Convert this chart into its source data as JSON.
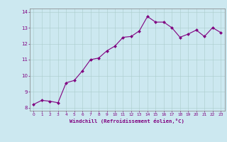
{
  "x_data": [
    0,
    1,
    2,
    3,
    4,
    5,
    6,
    7,
    8,
    9,
    10,
    11,
    12,
    13,
    14,
    15,
    16,
    17,
    18,
    19,
    20,
    21,
    22,
    23
  ],
  "y_data": [
    8.2,
    8.45,
    8.4,
    8.3,
    9.55,
    9.7,
    10.3,
    11.0,
    11.1,
    11.55,
    11.85,
    12.4,
    12.45,
    12.8,
    13.7,
    13.35,
    13.35,
    13.0,
    12.4,
    12.6,
    12.85,
    12.45,
    13.0,
    12.7
  ],
  "xlabel": "Windchill (Refroidissement éolien,°C)",
  "xlim": [
    -0.5,
    23.5
  ],
  "ylim": [
    7.8,
    14.2
  ],
  "yticks": [
    8,
    9,
    10,
    11,
    12,
    13,
    14
  ],
  "xticks": [
    0,
    1,
    2,
    3,
    4,
    5,
    6,
    7,
    8,
    9,
    10,
    11,
    12,
    13,
    14,
    15,
    16,
    17,
    18,
    19,
    20,
    21,
    22,
    23
  ],
  "line_color": "#800080",
  "marker_color": "#800080",
  "bg_color": "#cce8f0",
  "grid_color": "#aacccc",
  "border_color": "#808080",
  "tick_label_color": "#800080",
  "axis_label_color": "#800080"
}
